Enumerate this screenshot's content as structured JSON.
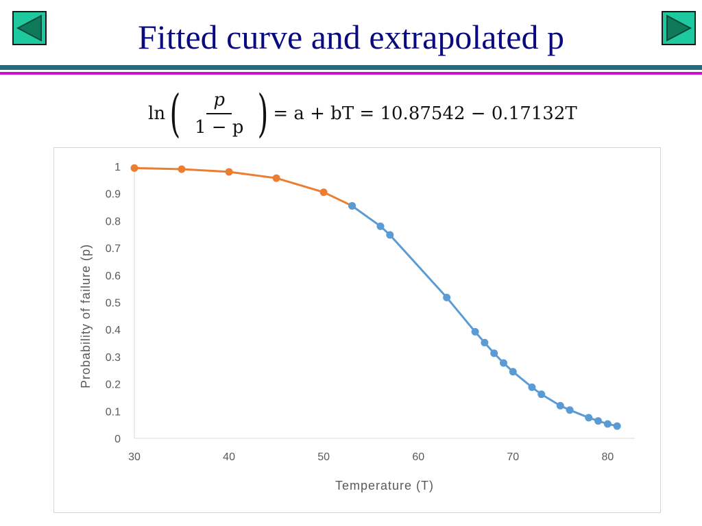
{
  "slide": {
    "title": "Fitted curve and extrapolated p"
  },
  "nav": {
    "prev_icon": "triangle-left-icon",
    "next_icon": "triangle-right-icon",
    "button_color": "#1fc9a0",
    "triangle_color": "#0e7a5a"
  },
  "formula": {
    "ln": "ln",
    "numerator": "p",
    "denominator": "1 − p",
    "rhs": "= a + bT = 10.87542 − 0.17132T"
  },
  "chart_data": {
    "type": "line",
    "xlabel": "Temperature (T)",
    "ylabel": "Probability of failure (p)",
    "xlim": [
      30,
      82
    ],
    "ylim": [
      0,
      1
    ],
    "x_ticks": [
      30,
      40,
      50,
      60,
      70,
      80
    ],
    "y_ticks": [
      0,
      0.1,
      0.2,
      0.3,
      0.4,
      0.5,
      0.6,
      0.7,
      0.8,
      0.9,
      1
    ],
    "grid": false,
    "legend": "none",
    "series": [
      {
        "color": "#ed7d31",
        "x": [
          30,
          35,
          40,
          45,
          50,
          53
        ],
        "y": [
          0.994,
          0.99,
          0.98,
          0.957,
          0.905,
          0.855
        ]
      },
      {
        "color": "#5b9bd5",
        "x": [
          53,
          56,
          57,
          63,
          66,
          67,
          68,
          69,
          70,
          72,
          73,
          75,
          76,
          78,
          79,
          80,
          81
        ],
        "y": [
          0.855,
          0.78,
          0.748,
          0.518,
          0.392,
          0.352,
          0.313,
          0.277,
          0.245,
          0.188,
          0.162,
          0.12,
          0.104,
          0.076,
          0.064,
          0.053,
          0.045
        ]
      }
    ]
  }
}
